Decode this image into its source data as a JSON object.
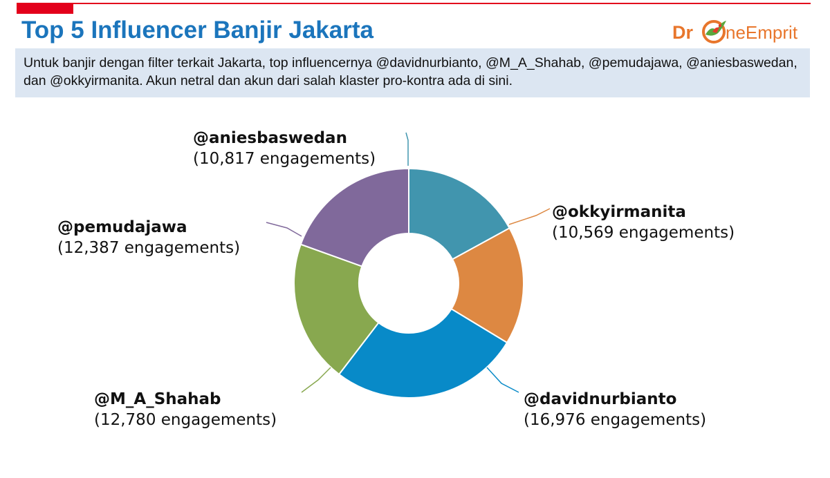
{
  "header": {
    "title": "Top 5 Influencer Banjir Jakarta",
    "summary": "Untuk banjir dengan filter terkait Jakarta, top influencernya @davidnurbianto, @M_A_Shahab, @pemudajawa, @aniesbaswedan, dan @okkyirmanita. Akun netral dan akun dari salah klaster pro-kontra ada di sini."
  },
  "logo": {
    "part1": "Dr",
    "part2": "neEmprit",
    "icon": "drone-bird-icon"
  },
  "colors": {
    "title": "#1b75bc",
    "accent_red": "#e3001b",
    "summary_bg": "#dce6f2",
    "logo_text": "#e8762c"
  },
  "chart_data": {
    "type": "pie",
    "variant": "donut",
    "start": "12 o'clock, clockwise",
    "slices": [
      {
        "name": "@aniesbaswedan",
        "value": 10817,
        "value_label": "(10,817 engagements)",
        "color": "#4195ae"
      },
      {
        "name": "@okkyirmanita",
        "value": 10569,
        "value_label": "(10,569 engagements)",
        "color": "#dd8842"
      },
      {
        "name": "@davidnurbianto",
        "value": 16976,
        "value_label": "(16,976 engagements)",
        "color": "#088ac8"
      },
      {
        "name": "@M_A_Shahab",
        "value": 12780,
        "value_label": "(12,780 engagements)",
        "color": "#88a84f"
      },
      {
        "name": "@pemudajawa",
        "value": 12387,
        "value_label": "(12,387 engagements)",
        "color": "#80699b"
      }
    ]
  }
}
